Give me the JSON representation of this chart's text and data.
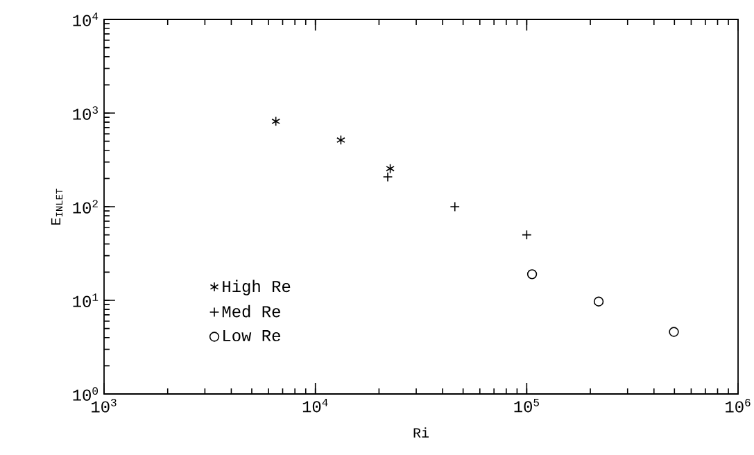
{
  "chart_data": {
    "type": "scatter",
    "xlabel": "Ri",
    "ylabel": "E$_{INLET}$",
    "log": "xy",
    "legend": "bottom left",
    "grid": false,
    "xlim": [
      1000,
      1000000
    ],
    "ylim": [
      1,
      10000
    ],
    "xticks": [
      {
        "value": 1000,
        "label": "10$^{3}$"
      },
      {
        "value": 10000,
        "label": "10$^{4}$"
      },
      {
        "value": 100000,
        "label": "10$^{5}$"
      },
      {
        "value": 1000000,
        "label": "10$^{6}$"
      }
    ],
    "yticks": [
      {
        "value": 1,
        "label": "10$^{0}$"
      },
      {
        "value": 10,
        "label": "10$^{1}$"
      },
      {
        "value": 100,
        "label": "10$^{2}$"
      },
      {
        "value": 1000,
        "label": "10$^{3}$"
      },
      {
        "value": 10000,
        "label": "10$^{4}$"
      }
    ],
    "series": [
      {
        "name": "High Re",
        "color": "#000000",
        "x": [
          6500,
          13200,
          22600
        ],
        "values": [
          815,
          515,
          255
        ]
      },
      {
        "name": "Med Re",
        "color": "#000000",
        "marker": "cross",
        "x": [
          22000,
          45700,
          100000
        ],
        "values": [
          208,
          100,
          50
        ]
      },
      {
        "name": "Low Re",
        "color": "#000000",
        "marker": "circle",
        "x": [
          106000,
          219000,
          497000
        ],
        "values": [
          19,
          9.7,
          4.6
        ]
      }
    ]
  }
}
